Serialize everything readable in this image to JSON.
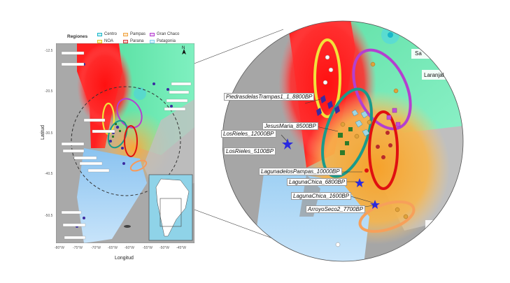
{
  "legend": {
    "title": "Regiones",
    "items": [
      {
        "label": "Centro",
        "color": "#19b7c9"
      },
      {
        "label": "Pampas",
        "color": "#f0a444"
      },
      {
        "label": "Gran Chaco",
        "color": "#b43fd0"
      },
      {
        "label": "NOA",
        "color": "#f2e23a"
      },
      {
        "label": "Parana",
        "color": "#d63a3a"
      },
      {
        "label": "Patagonia",
        "color": "#7fd0f0"
      }
    ]
  },
  "axes": {
    "ylabel": "Latitud",
    "xlabel": "Longitud",
    "lat_ticks": [
      "-12.5",
      "-20.5",
      "-30.5",
      "-40.5",
      "-50.5"
    ],
    "lon_ticks": [
      "-80°W",
      "-75°W",
      "-70°W",
      "-65°W",
      "-60°W",
      "-55°W",
      "-50°W",
      "-45°W"
    ]
  },
  "north_label": "N",
  "zoom_labels": {
    "piedras": "PiedrasdelasTrampas1_1_8800BP",
    "jesus": "JesusMaria_8500BP",
    "rieles12": "LosRieles_12000BP",
    "rieles5": "LosRieles_5100BP",
    "pampas": "LagunadelosPampas_10000BP",
    "chica6800": "LagunaChica_6800BP",
    "chica1600": "LagunaChica_1600BP",
    "arroyo": "ArroyoSeco2_7700BP",
    "place1": "Sa",
    "place2": "Laranjal"
  },
  "colors": {
    "ocean": "#b0b0b0",
    "land_gray": "#bdbdbd",
    "red": "#ff1a1a",
    "orange": "#f7a93a",
    "green": "#5fe0a8",
    "blue": "#a7d4f5"
  }
}
